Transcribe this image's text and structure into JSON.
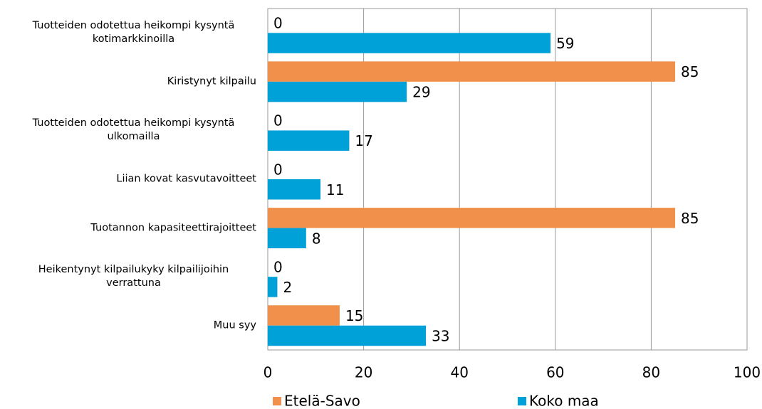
{
  "chart_data": {
    "type": "bar",
    "orientation": "horizontal",
    "categories": [
      "Tuotteiden odotettua heikompi kysyntä kotimarkkinoilla",
      "Kiristynyt kilpailu",
      "Tuotteiden odotettua heikompi kysyntä ulkomailla",
      "Liian kovat kasvutavoitteet",
      "Tuotannon kapasiteettirajoitteet",
      "Heikentynyt kilpailukyky kilpailijoihin verrattuna",
      "Muu syy"
    ],
    "series": [
      {
        "name": "Etelä-Savo",
        "color": "#f0904a",
        "values": [
          0,
          85,
          0,
          0,
          85,
          0,
          15
        ]
      },
      {
        "name": "Koko maa",
        "color": "#00a0d8",
        "values": [
          59,
          29,
          17,
          11,
          8,
          2,
          33
        ]
      }
    ],
    "xlim": [
      0,
      100
    ],
    "xticks": [
      0,
      20,
      40,
      60,
      80,
      100
    ],
    "grid": true,
    "legend": "bottom"
  }
}
